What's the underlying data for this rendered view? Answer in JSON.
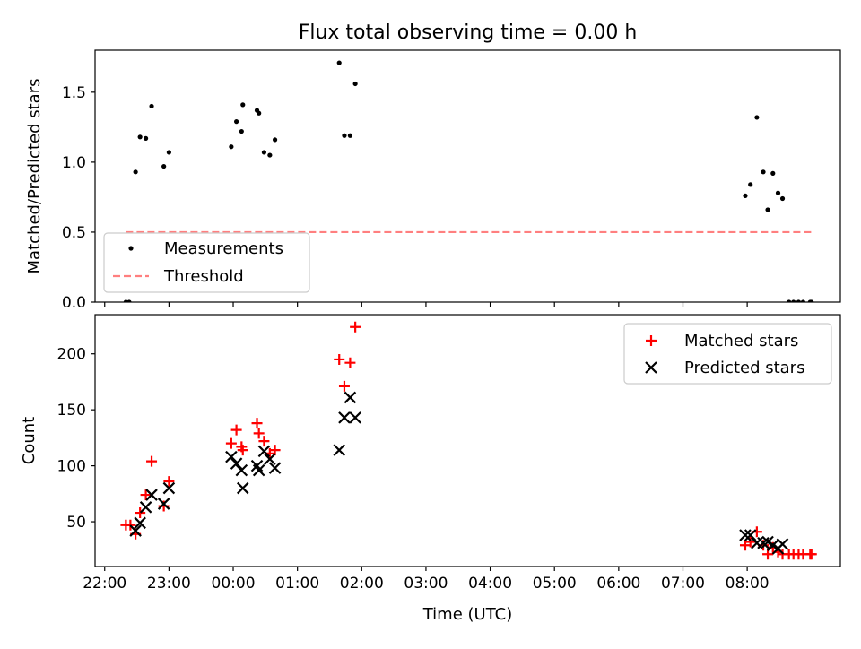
{
  "title": "Flux total observing time = 0.00 h",
  "chart_data": [
    {
      "type": "scatter",
      "panel": "top",
      "ylabel": "Matched/Predicted stars",
      "ylim": [
        0,
        1.8
      ],
      "yticks": [
        0.0,
        0.5,
        1.0,
        1.5
      ],
      "ytick_labels": [
        "0.0",
        "0.5",
        "1.0",
        "1.5"
      ],
      "legend_position": "lower-left",
      "series": [
        {
          "name": "Measurements",
          "marker": "dot",
          "color": "#000000",
          "points": [
            [
              22.33,
              0.0
            ],
            [
              22.38,
              0.0
            ],
            [
              22.48,
              0.93
            ],
            [
              22.55,
              1.18
            ],
            [
              22.64,
              1.17
            ],
            [
              22.73,
              1.4
            ],
            [
              22.92,
              0.97
            ],
            [
              23.0,
              1.07
            ],
            [
              23.97,
              1.11
            ],
            [
              24.05,
              1.29
            ],
            [
              24.13,
              1.22
            ],
            [
              24.15,
              1.41
            ],
            [
              24.37,
              1.37
            ],
            [
              24.4,
              1.35
            ],
            [
              24.48,
              1.07
            ],
            [
              24.57,
              1.05
            ],
            [
              24.65,
              1.16
            ],
            [
              25.65,
              1.71
            ],
            [
              25.73,
              1.19
            ],
            [
              25.82,
              1.19
            ],
            [
              25.9,
              1.56
            ],
            [
              31.97,
              0.76
            ],
            [
              32.05,
              0.84
            ],
            [
              32.15,
              1.32
            ],
            [
              32.25,
              0.93
            ],
            [
              32.32,
              0.66
            ],
            [
              32.4,
              0.92
            ],
            [
              32.48,
              0.78
            ],
            [
              32.55,
              0.74
            ],
            [
              32.65,
              0.0
            ],
            [
              32.72,
              0.0
            ],
            [
              32.8,
              0.0
            ],
            [
              32.87,
              0.0
            ],
            [
              32.98,
              0.0
            ],
            [
              33.0,
              0.0
            ]
          ]
        },
        {
          "name": "Threshold",
          "marker": "dashed-line",
          "color": "#ff7f7f",
          "points": [
            [
              22.33,
              0.5
            ],
            [
              33.0,
              0.5
            ]
          ]
        }
      ]
    },
    {
      "type": "scatter",
      "panel": "bottom",
      "ylabel": "Count",
      "xlabel": "Time (UTC)",
      "ylim": [
        10,
        235
      ],
      "yticks": [
        50,
        100,
        150,
        200
      ],
      "ytick_labels": [
        "50",
        "100",
        "150",
        "200"
      ],
      "xlim": [
        21.85,
        33.45
      ],
      "xticks": [
        22,
        23,
        24,
        25,
        26,
        27,
        28,
        29,
        30,
        31,
        32
      ],
      "xtick_labels": [
        "22:00",
        "23:00",
        "00:00",
        "01:00",
        "02:00",
        "03:00",
        "04:00",
        "05:00",
        "06:00",
        "07:00",
        "08:00"
      ],
      "legend_position": "top-right",
      "series": [
        {
          "name": "Matched stars",
          "marker": "plus",
          "color": "#ff0000",
          "points": [
            [
              22.33,
              47
            ],
            [
              22.4,
              47
            ],
            [
              22.48,
              39
            ],
            [
              22.55,
              58
            ],
            [
              22.64,
              74
            ],
            [
              22.73,
              104
            ],
            [
              22.92,
              64
            ],
            [
              23.0,
              86
            ],
            [
              23.97,
              120
            ],
            [
              24.05,
              132
            ],
            [
              24.13,
              117
            ],
            [
              24.15,
              114
            ],
            [
              24.37,
              138
            ],
            [
              24.4,
              129
            ],
            [
              24.48,
              122
            ],
            [
              24.57,
              111
            ],
            [
              24.65,
              114
            ],
            [
              25.65,
              195
            ],
            [
              25.73,
              171
            ],
            [
              25.82,
              192
            ],
            [
              25.9,
              224
            ],
            [
              31.97,
              29
            ],
            [
              32.05,
              32
            ],
            [
              32.15,
              41
            ],
            [
              32.25,
              29
            ],
            [
              32.32,
              21
            ],
            [
              32.4,
              27
            ],
            [
              32.48,
              23
            ],
            [
              32.55,
              21
            ],
            [
              32.65,
              21
            ],
            [
              32.72,
              21
            ],
            [
              32.8,
              21
            ],
            [
              32.87,
              21
            ],
            [
              32.98,
              21
            ],
            [
              33.0,
              21
            ]
          ]
        },
        {
          "name": "Predicted stars",
          "marker": "x",
          "color": "#000000",
          "points": [
            [
              22.48,
              42
            ],
            [
              22.55,
              49
            ],
            [
              22.64,
              63
            ],
            [
              22.73,
              74
            ],
            [
              22.92,
              66
            ],
            [
              23.0,
              80
            ],
            [
              23.97,
              108
            ],
            [
              24.05,
              102
            ],
            [
              24.13,
              96
            ],
            [
              24.15,
              80
            ],
            [
              24.37,
              100
            ],
            [
              24.4,
              96
            ],
            [
              24.48,
              113
            ],
            [
              24.57,
              106
            ],
            [
              24.65,
              98
            ],
            [
              25.65,
              114
            ],
            [
              25.73,
              143
            ],
            [
              25.82,
              161
            ],
            [
              25.9,
              143
            ],
            [
              31.97,
              38
            ],
            [
              32.05,
              38
            ],
            [
              32.15,
              31
            ],
            [
              32.25,
              31
            ],
            [
              32.32,
              32
            ],
            [
              32.4,
              29
            ],
            [
              32.48,
              26
            ],
            [
              32.55,
              30
            ]
          ]
        }
      ]
    }
  ]
}
